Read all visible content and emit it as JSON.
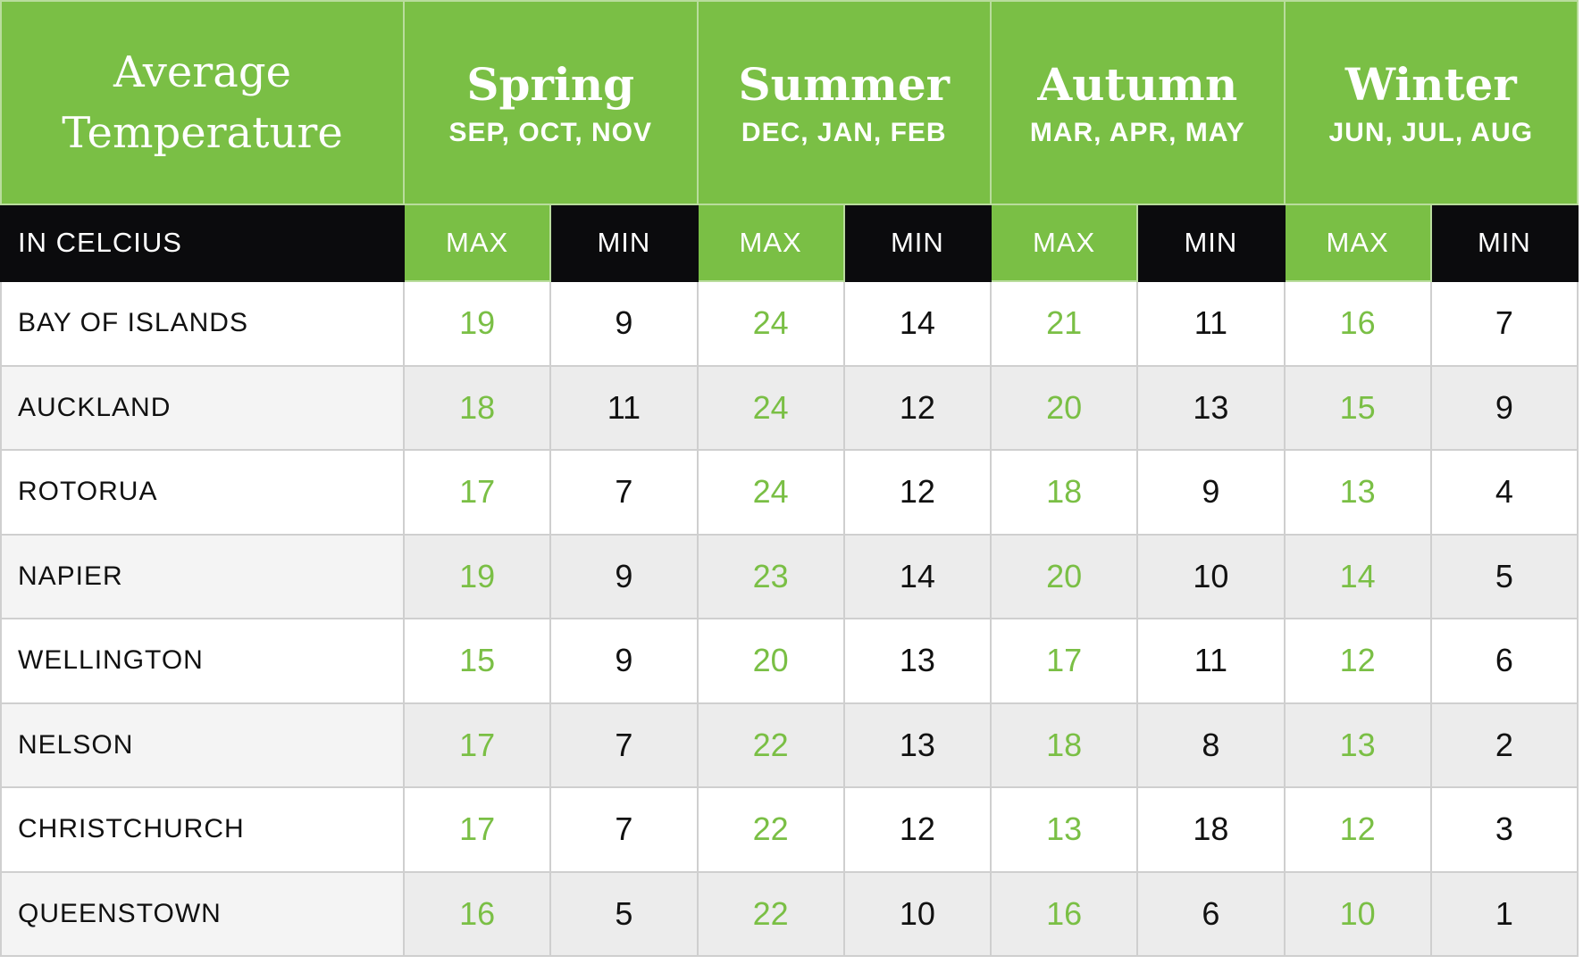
{
  "colors": {
    "green": "#7abf45",
    "black": "#0b0b0d",
    "row_alt": "#ececec"
  },
  "header": {
    "title_line1": "Average",
    "title_line2": "Temperature",
    "unit_label": "IN CELCIUS",
    "max_label": "MAX",
    "min_label": "MIN"
  },
  "chart_data": {
    "type": "table",
    "title": "Average Temperature",
    "unit": "IN CELCIUS",
    "seasons": [
      {
        "name": "Spring",
        "months": "SEP, OCT, NOV"
      },
      {
        "name": "Summer",
        "months": "DEC, JAN, FEB"
      },
      {
        "name": "Autumn",
        "months": "MAR, APR, MAY"
      },
      {
        "name": "Winter",
        "months": "JUN, JUL, AUG"
      }
    ],
    "columns": [
      "MAX",
      "MIN",
      "MAX",
      "MIN",
      "MAX",
      "MIN",
      "MAX",
      "MIN"
    ],
    "rows": [
      {
        "city": "BAY OF ISLANDS",
        "values": [
          19,
          9,
          24,
          14,
          21,
          11,
          16,
          7
        ]
      },
      {
        "city": "AUCKLAND",
        "values": [
          18,
          11,
          24,
          12,
          20,
          13,
          15,
          9
        ]
      },
      {
        "city": "ROTORUA",
        "values": [
          17,
          7,
          24,
          12,
          18,
          9,
          13,
          4
        ]
      },
      {
        "city": "NAPIER",
        "values": [
          19,
          9,
          23,
          14,
          20,
          10,
          14,
          5
        ]
      },
      {
        "city": "WELLINGTON",
        "values": [
          15,
          9,
          20,
          13,
          17,
          11,
          12,
          6
        ]
      },
      {
        "city": "NELSON",
        "values": [
          17,
          7,
          22,
          13,
          18,
          8,
          13,
          2
        ]
      },
      {
        "city": "CHRISTCHURCH",
        "values": [
          17,
          7,
          22,
          12,
          13,
          18,
          12,
          3
        ]
      },
      {
        "city": "QUEENSTOWN",
        "values": [
          16,
          5,
          22,
          10,
          16,
          6,
          10,
          1
        ]
      }
    ]
  }
}
